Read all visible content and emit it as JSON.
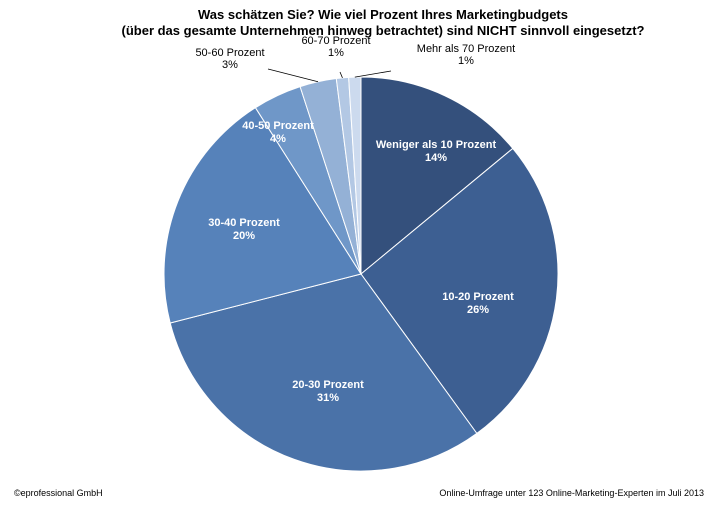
{
  "chart_data": {
    "type": "pie",
    "title_lines": [
      "Was schätzen Sie? Wie viel Prozent Ihres Marketingbudgets",
      "(über das gesamte Unternehmen hinweg betrachtet) sind NICHT sinnvoll eingesetzt?"
    ],
    "slices": [
      {
        "label": "Weniger als 10 Prozent",
        "value": 14,
        "value_label": "14%",
        "color": "#34507c",
        "label_placement": "inside"
      },
      {
        "label": "10-20 Prozent",
        "value": 26,
        "value_label": "26%",
        "color": "#3d5f92",
        "label_placement": "inside"
      },
      {
        "label": "20-30 Prozent",
        "value": 31,
        "value_label": "31%",
        "color": "#4a72a8",
        "label_placement": "inside"
      },
      {
        "label": "30-40 Prozent",
        "value": 20,
        "value_label": "20%",
        "color": "#5682ba",
        "label_placement": "inside"
      },
      {
        "label": "40-50 Prozent",
        "value": 4,
        "value_label": "4%",
        "color": "#6f97c8",
        "label_placement": "inside"
      },
      {
        "label": "50-60 Prozent",
        "value": 3,
        "value_label": "3%",
        "color": "#94b1d6",
        "label_placement": "outside"
      },
      {
        "label": "60-70 Prozent",
        "value": 1,
        "value_label": "1%",
        "color": "#b3c8e4",
        "label_placement": "outside"
      },
      {
        "label": "Mehr als 70 Prozent",
        "value": 1,
        "value_label": "1%",
        "color": "#ccdaee",
        "label_placement": "outside"
      }
    ],
    "start_direction": "top",
    "direction": "clockwise",
    "legend": "none"
  },
  "footer": {
    "copyright": "©eprofessional GmbH",
    "source": "Online-Umfrage unter 123 Online-Marketing-Experten im Juli 2013"
  }
}
